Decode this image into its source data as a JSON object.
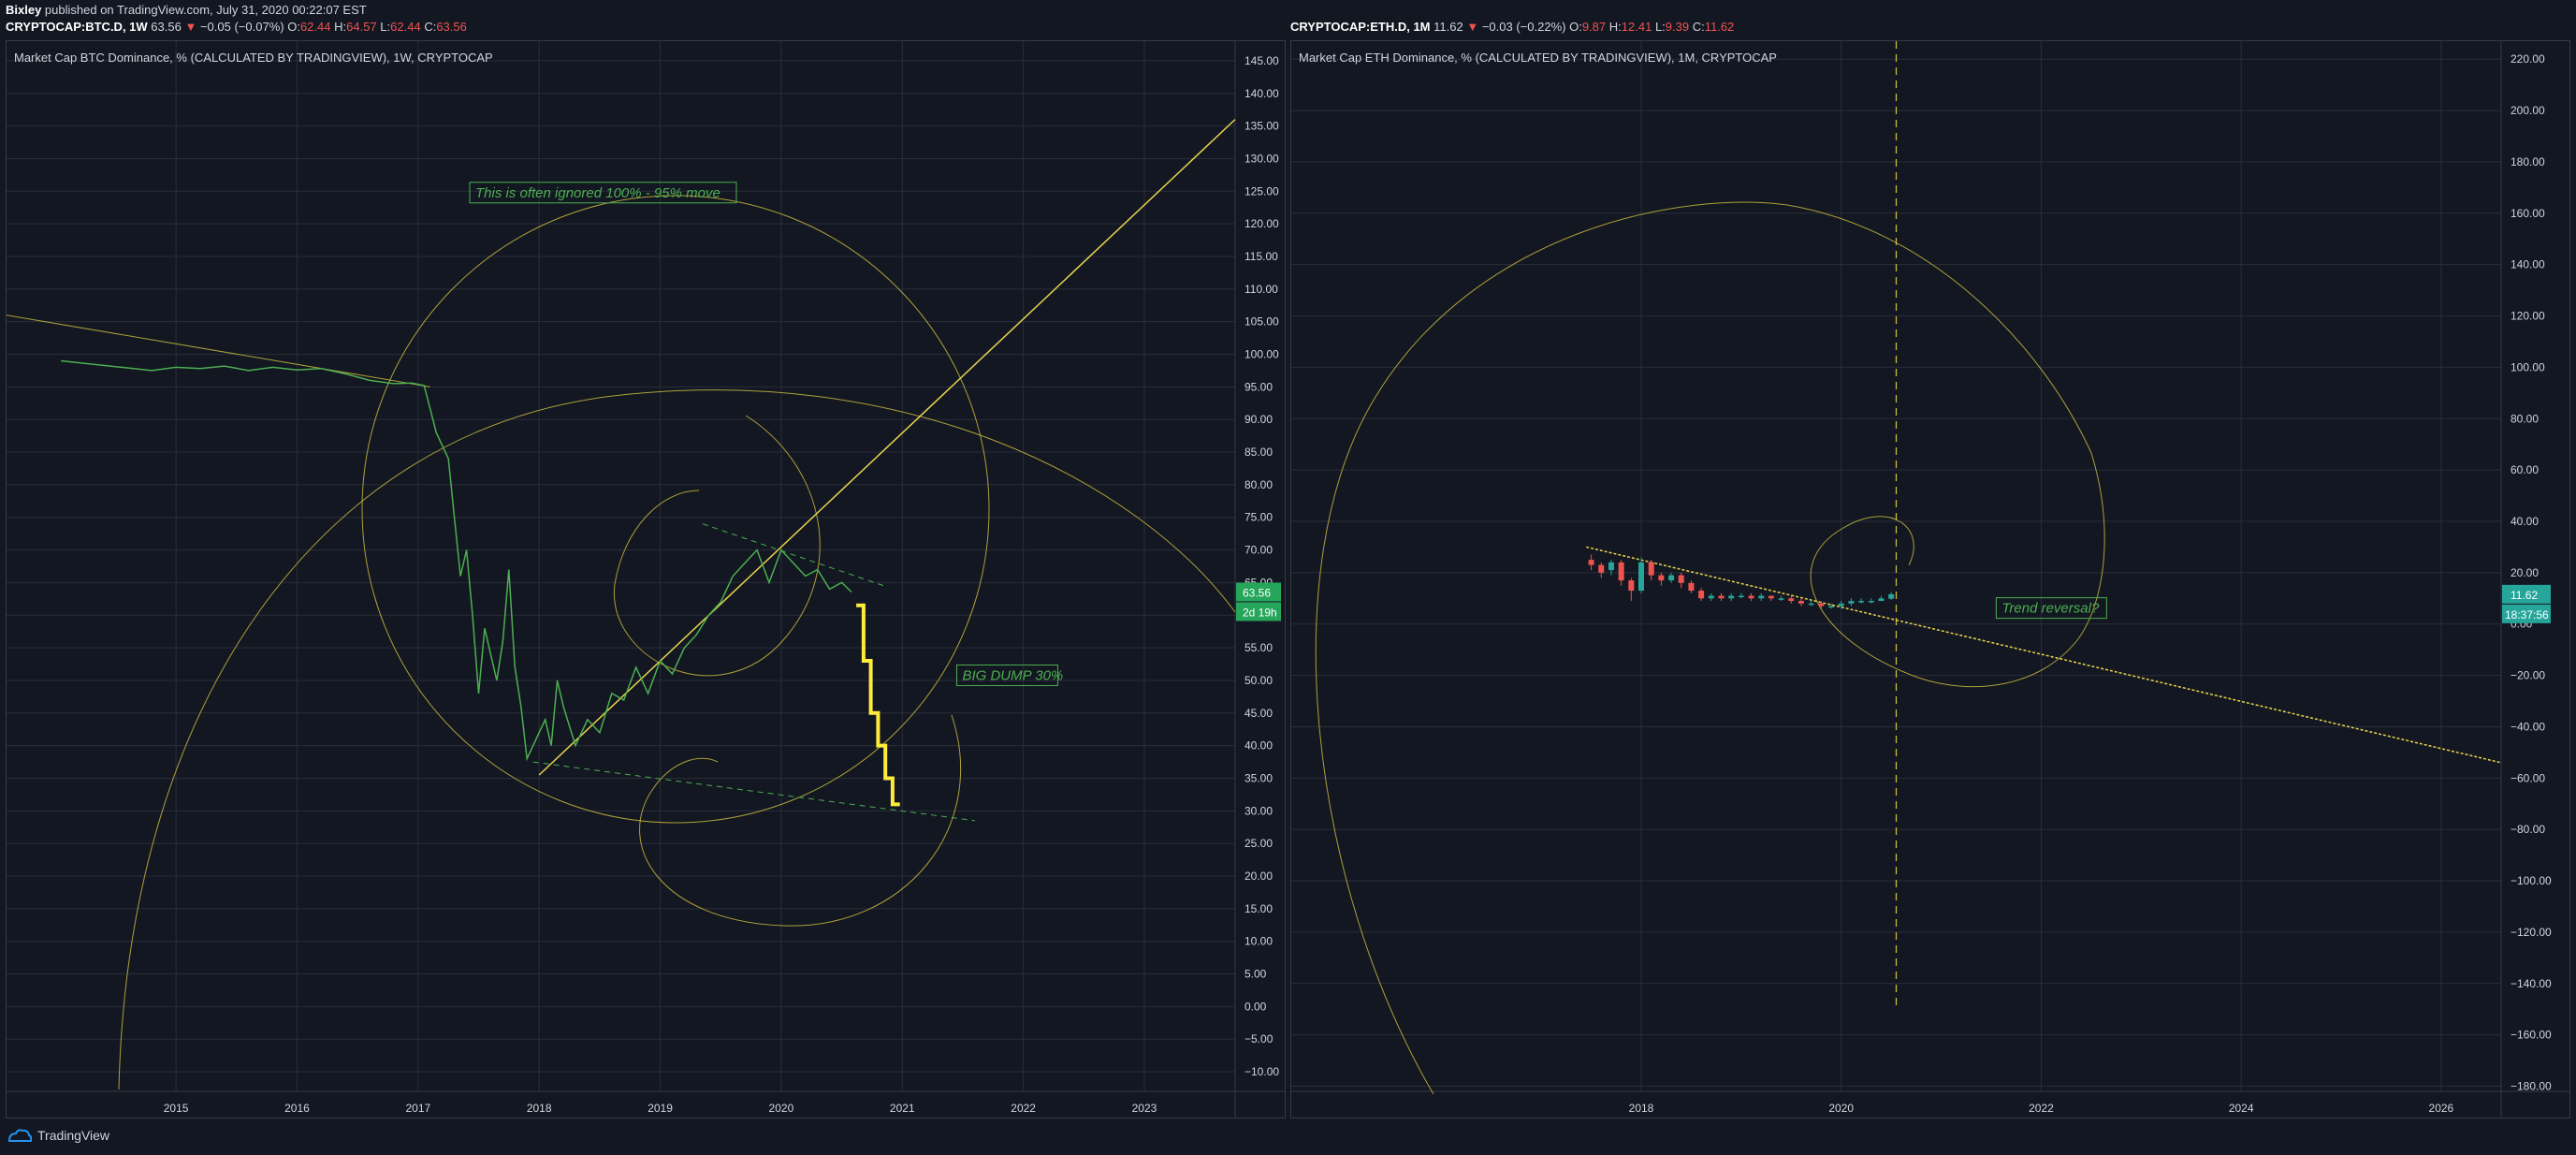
{
  "header": {
    "publisher": "Bixley",
    "published": " published on TradingView.com, July 31, 2020 00:22:07 EST"
  },
  "left": {
    "quote": {
      "symbol": "CRYPTOCAP:BTC.D, 1W",
      "last": "63.56",
      "change": "−0.05 (−0.07%)",
      "o": "62.44",
      "h": "64.57",
      "l": "62.44",
      "c": "63.56"
    },
    "title": "Market Cap BTC Dominance, % (CALCULATED BY TRADINGVIEW), 1W, CRYPTOCAP",
    "price_tag": "63.56",
    "time_tag": "2d 19h",
    "annotations": [
      "This is often ignored 100% - 95% move",
      "BIG DUMP 30%"
    ]
  },
  "right": {
    "quote": {
      "symbol": "CRYPTOCAP:ETH.D, 1M",
      "last": "11.62",
      "change": "−0.03 (−0.22%)",
      "o": "9.87",
      "h": "12.41",
      "l": "9.39",
      "c": "11.62"
    },
    "title": "Market Cap ETH Dominance, % (CALCULATED BY TRADINGVIEW), 1M, CRYPTOCAP",
    "price_tag": "11.62",
    "time_tag": "18:37:56",
    "annotations": [
      "Trend reversal?"
    ]
  },
  "brand": "TradingView",
  "colors": {
    "bg": "#131722",
    "grid": "#2a2e39",
    "btc_line": "#4caf50",
    "drawing": "#d4c341",
    "dump": "#ffeb3b",
    "tag_green": "#26a65b",
    "tag_teal": "#26a69a",
    "candle_up": "#26a69a",
    "candle_down": "#ef5350",
    "text_green": "#4caf50"
  },
  "chart_data": [
    {
      "type": "line",
      "title": "Market Cap BTC Dominance, % (CALCULATED BY TRADINGVIEW), 1W, CRYPTOCAP",
      "x_ticks": [
        "2015",
        "2016",
        "2017",
        "2018",
        "2019",
        "2020",
        "2021",
        "2022",
        "2023"
      ],
      "y_ticks": [
        "145.00",
        "140.00",
        "135.00",
        "130.00",
        "125.00",
        "120.00",
        "115.00",
        "110.00",
        "105.00",
        "100.00",
        "95.00",
        "90.00",
        "85.00",
        "80.00",
        "75.00",
        "70.00",
        "65.00",
        "60.00",
        "55.00",
        "50.00",
        "45.00",
        "40.00",
        "35.00",
        "30.00",
        "25.00",
        "20.00",
        "15.00",
        "10.00",
        "5.00",
        "0.00",
        "−5.00",
        "−10.00"
      ],
      "ylim": [
        -13,
        148
      ],
      "xlim": [
        2013.6,
        2023.75
      ],
      "grid": true,
      "series": [
        {
          "x": [
            2014.05,
            2014.3,
            2014.55,
            2014.8,
            2015.0,
            2015.2,
            2015.4,
            2015.6,
            2015.8,
            2016.0,
            2016.2,
            2016.4,
            2016.6,
            2016.8,
            2016.95,
            2017.05,
            2017.15,
            2017.2,
            2017.25,
            2017.3,
            2017.35,
            2017.4,
            2017.45,
            2017.5,
            2017.55,
            2017.6,
            2017.65,
            2017.7,
            2017.75,
            2017.8,
            2017.85,
            2017.9,
            2017.95,
            2018.0,
            2018.05,
            2018.1,
            2018.15,
            2018.2,
            2018.3,
            2018.4,
            2018.5,
            2018.6,
            2018.7,
            2018.8,
            2018.9,
            2019.0,
            2019.1,
            2019.2,
            2019.3,
            2019.4,
            2019.5,
            2019.6,
            2019.7,
            2019.8,
            2019.9,
            2020.0,
            2020.1,
            2020.2,
            2020.3,
            2020.4,
            2020.5,
            2020.58
          ],
          "values": [
            99,
            98.5,
            98,
            97.5,
            98,
            97.8,
            98.2,
            97.5,
            98,
            97.6,
            97.8,
            97,
            96,
            95.5,
            95.6,
            95.2,
            88,
            86,
            84,
            75,
            66,
            70,
            60,
            48,
            58,
            54,
            50,
            56,
            67,
            52,
            46,
            38,
            40,
            42,
            44,
            40,
            50,
            46,
            40,
            44,
            42,
            48,
            47,
            52,
            48,
            53,
            51,
            55,
            57,
            60,
            62,
            66,
            68,
            70,
            65,
            70,
            68,
            66,
            67,
            64,
            65,
            63.56
          ]
        }
      ],
      "dump_levels": [
        61.5,
        53,
        45,
        40,
        35,
        31
      ],
      "annotations": [
        "This is often ignored 100% - 95% move",
        "BIG DUMP 30%"
      ]
    },
    {
      "type": "candlestick",
      "title": "Market Cap ETH Dominance, % (CALCULATED BY TRADINGVIEW), 1M, CRYPTOCAP",
      "x_ticks": [
        "2018",
        "2020",
        "2022",
        "2024",
        "2026"
      ],
      "y_ticks": [
        "220.00",
        "200.00",
        "180.00",
        "160.00",
        "140.00",
        "120.00",
        "100.00",
        "80.00",
        "60.00",
        "40.00",
        "20.00",
        "0.00",
        "−20.00",
        "−40.00",
        "−60.00",
        "−80.00",
        "−100.00",
        "−120.00",
        "−140.00",
        "−160.00",
        "−180.00"
      ],
      "ylim": [
        -182,
        227
      ],
      "xlim": [
        2014.5,
        2026.6
      ],
      "grid": true,
      "candles": [
        {
          "x": 2017.5,
          "o": 25,
          "c": 23,
          "h": 27,
          "l": 21
        },
        {
          "x": 2017.6,
          "o": 23,
          "c": 20,
          "h": 24,
          "l": 18
        },
        {
          "x": 2017.7,
          "o": 21,
          "c": 24,
          "h": 25,
          "l": 19
        },
        {
          "x": 2017.8,
          "o": 24,
          "c": 17,
          "h": 25,
          "l": 15
        },
        {
          "x": 2017.9,
          "o": 17,
          "c": 13,
          "h": 18,
          "l": 9
        },
        {
          "x": 2018.0,
          "o": 13,
          "c": 24,
          "h": 26,
          "l": 12
        },
        {
          "x": 2018.1,
          "o": 24,
          "c": 19,
          "h": 25,
          "l": 17
        },
        {
          "x": 2018.2,
          "o": 19,
          "c": 17,
          "h": 20,
          "l": 15
        },
        {
          "x": 2018.3,
          "o": 17,
          "c": 19,
          "h": 20,
          "l": 16
        },
        {
          "x": 2018.4,
          "o": 19,
          "c": 16,
          "h": 20,
          "l": 14
        },
        {
          "x": 2018.5,
          "o": 16,
          "c": 13,
          "h": 17,
          "l": 12
        },
        {
          "x": 2018.6,
          "o": 13,
          "c": 10,
          "h": 14,
          "l": 9
        },
        {
          "x": 2018.7,
          "o": 10,
          "c": 11,
          "h": 12,
          "l": 9
        },
        {
          "x": 2018.8,
          "o": 11,
          "c": 10,
          "h": 12,
          "l": 9
        },
        {
          "x": 2018.9,
          "o": 10,
          "c": 11,
          "h": 12,
          "l": 9
        },
        {
          "x": 2019.0,
          "o": 11,
          "c": 11,
          "h": 12,
          "l": 10
        },
        {
          "x": 2019.1,
          "o": 11,
          "c": 10,
          "h": 12,
          "l": 9
        },
        {
          "x": 2019.2,
          "o": 10,
          "c": 11,
          "h": 12,
          "l": 9
        },
        {
          "x": 2019.3,
          "o": 11,
          "c": 10,
          "h": 11,
          "l": 9
        },
        {
          "x": 2019.4,
          "o": 10,
          "c": 10,
          "h": 11,
          "l": 9
        },
        {
          "x": 2019.5,
          "o": 10,
          "c": 9,
          "h": 11,
          "l": 8
        },
        {
          "x": 2019.6,
          "o": 9,
          "c": 8,
          "h": 10,
          "l": 7
        },
        {
          "x": 2019.7,
          "o": 8,
          "c": 8,
          "h": 9,
          "l": 7
        },
        {
          "x": 2019.8,
          "o": 8,
          "c": 7,
          "h": 9,
          "l": 6
        },
        {
          "x": 2019.9,
          "o": 7,
          "c": 7,
          "h": 8,
          "l": 6
        },
        {
          "x": 2020.0,
          "o": 7,
          "c": 8,
          "h": 9,
          "l": 6
        },
        {
          "x": 2020.1,
          "o": 8,
          "c": 9,
          "h": 10,
          "l": 7
        },
        {
          "x": 2020.2,
          "o": 9,
          "c": 9,
          "h": 10,
          "l": 8
        },
        {
          "x": 2020.3,
          "o": 9,
          "c": 9,
          "h": 10,
          "l": 8
        },
        {
          "x": 2020.4,
          "o": 9,
          "c": 10,
          "h": 11,
          "l": 9
        },
        {
          "x": 2020.5,
          "o": 9.87,
          "c": 11.62,
          "h": 12.41,
          "l": 9.39
        }
      ],
      "annotations": [
        "Trend reversal?"
      ]
    }
  ]
}
